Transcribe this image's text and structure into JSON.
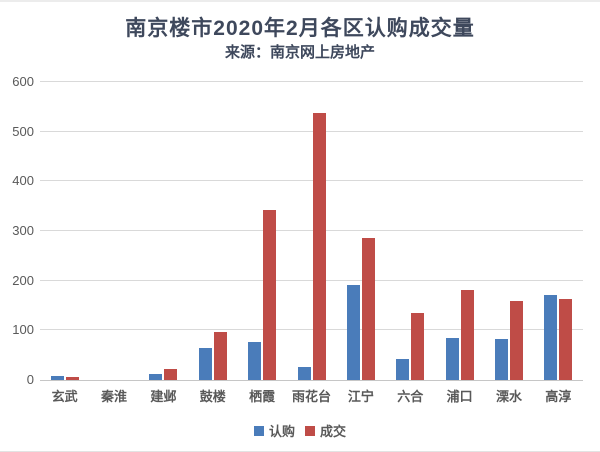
{
  "chart_data": {
    "type": "bar",
    "title": "南京楼市2020年2月各区认购成交量",
    "subtitle": "来源：南京网上房地产",
    "categories": [
      "玄武",
      "秦淮",
      "建邺",
      "鼓楼",
      "栖霞",
      "雨花台",
      "江宁",
      "六合",
      "浦口",
      "溧水",
      "高淳"
    ],
    "series": [
      {
        "name": "认购",
        "color": "#4a7cba",
        "values": [
          8,
          0,
          13,
          65,
          77,
          26,
          192,
          42,
          85,
          82,
          172
        ]
      },
      {
        "name": "成交",
        "color": "#bf4c47",
        "values": [
          6,
          0,
          22,
          96,
          342,
          538,
          285,
          134,
          181,
          159,
          163
        ]
      }
    ],
    "ylim": [
      0,
      600
    ],
    "ytick_step": 100,
    "yticks": [
      0,
      100,
      200,
      300,
      400,
      500,
      600
    ],
    "grid": true,
    "legend_position": "bottom",
    "colors": {
      "gridline": "#d9d9d9",
      "axis_line": "#c6c6c6",
      "tick_label": "#595959",
      "title": "#3e485c"
    }
  }
}
